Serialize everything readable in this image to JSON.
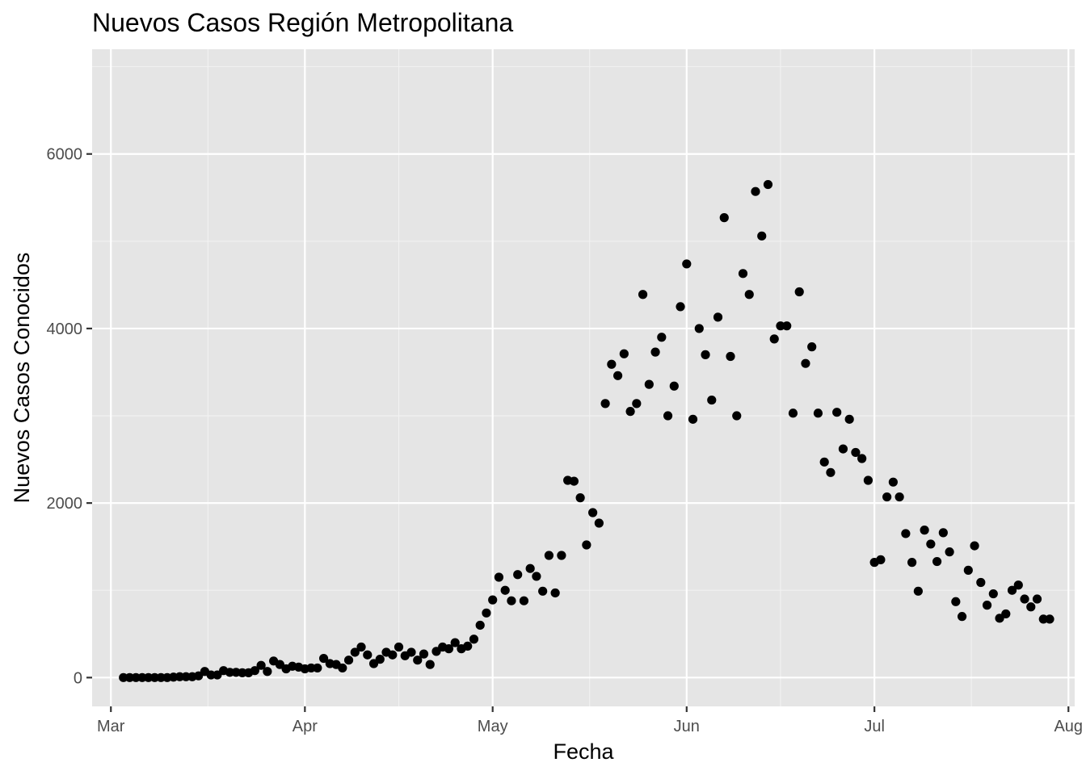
{
  "chart_data": {
    "type": "scatter",
    "title": "Nuevos Casos Región Metropolitana",
    "xlabel": "Fecha",
    "ylabel": "Nuevos Casos Conocidos",
    "xlim": [
      "2020-02-27",
      "2020-08-02"
    ],
    "ylim": [
      -330,
      7200
    ],
    "x_ticks": [
      {
        "date": "2020-03-01",
        "label": "Mar"
      },
      {
        "date": "2020-04-01",
        "label": "Apr"
      },
      {
        "date": "2020-05-01",
        "label": "May"
      },
      {
        "date": "2020-06-01",
        "label": "Jun"
      },
      {
        "date": "2020-07-01",
        "label": "Jul"
      },
      {
        "date": "2020-08-01",
        "label": "Aug"
      }
    ],
    "y_ticks": [
      0,
      2000,
      4000,
      6000
    ],
    "grid": true,
    "background": "#e5e5e5",
    "point_color": "#000000",
    "series": [
      {
        "name": "",
        "points": [
          [
            "2020-03-03",
            0
          ],
          [
            "2020-03-04",
            0
          ],
          [
            "2020-03-05",
            0
          ],
          [
            "2020-03-06",
            0
          ],
          [
            "2020-03-07",
            0
          ],
          [
            "2020-03-08",
            0
          ],
          [
            "2020-03-09",
            0
          ],
          [
            "2020-03-10",
            0
          ],
          [
            "2020-03-11",
            5
          ],
          [
            "2020-03-12",
            10
          ],
          [
            "2020-03-13",
            10
          ],
          [
            "2020-03-14",
            10
          ],
          [
            "2020-03-15",
            20
          ],
          [
            "2020-03-16",
            70
          ],
          [
            "2020-03-17",
            30
          ],
          [
            "2020-03-18",
            30
          ],
          [
            "2020-03-19",
            80
          ],
          [
            "2020-03-20",
            60
          ],
          [
            "2020-03-21",
            60
          ],
          [
            "2020-03-22",
            55
          ],
          [
            "2020-03-23",
            55
          ],
          [
            "2020-03-24",
            80
          ],
          [
            "2020-03-25",
            140
          ],
          [
            "2020-03-26",
            70
          ],
          [
            "2020-03-27",
            190
          ],
          [
            "2020-03-28",
            150
          ],
          [
            "2020-03-29",
            100
          ],
          [
            "2020-03-30",
            130
          ],
          [
            "2020-03-31",
            120
          ],
          [
            "2020-04-01",
            100
          ],
          [
            "2020-04-02",
            110
          ],
          [
            "2020-04-03",
            110
          ],
          [
            "2020-04-04",
            220
          ],
          [
            "2020-04-05",
            160
          ],
          [
            "2020-04-06",
            150
          ],
          [
            "2020-04-07",
            110
          ],
          [
            "2020-04-08",
            200
          ],
          [
            "2020-04-09",
            290
          ],
          [
            "2020-04-10",
            350
          ],
          [
            "2020-04-11",
            260
          ],
          [
            "2020-04-12",
            160
          ],
          [
            "2020-04-13",
            210
          ],
          [
            "2020-04-14",
            290
          ],
          [
            "2020-04-15",
            260
          ],
          [
            "2020-04-16",
            350
          ],
          [
            "2020-04-17",
            250
          ],
          [
            "2020-04-18",
            290
          ],
          [
            "2020-04-19",
            200
          ],
          [
            "2020-04-20",
            270
          ],
          [
            "2020-04-21",
            150
          ],
          [
            "2020-04-22",
            300
          ],
          [
            "2020-04-23",
            350
          ],
          [
            "2020-04-24",
            330
          ],
          [
            "2020-04-25",
            400
          ],
          [
            "2020-04-26",
            330
          ],
          [
            "2020-04-27",
            360
          ],
          [
            "2020-04-28",
            440
          ],
          [
            "2020-04-29",
            600
          ],
          [
            "2020-04-30",
            740
          ],
          [
            "2020-05-01",
            890
          ],
          [
            "2020-05-02",
            1150
          ],
          [
            "2020-05-03",
            1000
          ],
          [
            "2020-05-04",
            880
          ],
          [
            "2020-05-05",
            1180
          ],
          [
            "2020-05-06",
            880
          ],
          [
            "2020-05-07",
            1250
          ],
          [
            "2020-05-08",
            1160
          ],
          [
            "2020-05-09",
            990
          ],
          [
            "2020-05-10",
            1400
          ],
          [
            "2020-05-11",
            970
          ],
          [
            "2020-05-12",
            1400
          ],
          [
            "2020-05-13",
            2260
          ],
          [
            "2020-05-14",
            2250
          ],
          [
            "2020-05-15",
            2060
          ],
          [
            "2020-05-16",
            1520
          ],
          [
            "2020-05-17",
            1890
          ],
          [
            "2020-05-18",
            1770
          ],
          [
            "2020-05-19",
            3140
          ],
          [
            "2020-05-20",
            3590
          ],
          [
            "2020-05-21",
            3460
          ],
          [
            "2020-05-22",
            3710
          ],
          [
            "2020-05-23",
            3050
          ],
          [
            "2020-05-24",
            3140
          ],
          [
            "2020-05-25",
            4390
          ],
          [
            "2020-05-26",
            3360
          ],
          [
            "2020-05-27",
            3730
          ],
          [
            "2020-05-28",
            3900
          ],
          [
            "2020-05-29",
            3000
          ],
          [
            "2020-05-30",
            3340
          ],
          [
            "2020-05-31",
            4250
          ],
          [
            "2020-06-01",
            4740
          ],
          [
            "2020-06-02",
            2960
          ],
          [
            "2020-06-03",
            4000
          ],
          [
            "2020-06-04",
            3700
          ],
          [
            "2020-06-05",
            3180
          ],
          [
            "2020-06-06",
            4130
          ],
          [
            "2020-06-07",
            5270
          ],
          [
            "2020-06-08",
            3680
          ],
          [
            "2020-06-09",
            3000
          ],
          [
            "2020-06-10",
            4630
          ],
          [
            "2020-06-11",
            4390
          ],
          [
            "2020-06-12",
            5570
          ],
          [
            "2020-06-13",
            5060
          ],
          [
            "2020-06-14",
            5650
          ],
          [
            "2020-06-15",
            3880
          ],
          [
            "2020-06-16",
            4030
          ],
          [
            "2020-06-17",
            4030
          ],
          [
            "2020-06-18",
            3030
          ],
          [
            "2020-06-19",
            4420
          ],
          [
            "2020-06-20",
            3600
          ],
          [
            "2020-06-21",
            3790
          ],
          [
            "2020-06-22",
            3030
          ],
          [
            "2020-06-23",
            2470
          ],
          [
            "2020-06-24",
            2350
          ],
          [
            "2020-06-25",
            3040
          ],
          [
            "2020-06-26",
            2620
          ],
          [
            "2020-06-27",
            2960
          ],
          [
            "2020-06-28",
            2580
          ],
          [
            "2020-06-29",
            2510
          ],
          [
            "2020-06-30",
            2260
          ],
          [
            "2020-07-01",
            1320
          ],
          [
            "2020-07-02",
            1350
          ],
          [
            "2020-07-03",
            2070
          ],
          [
            "2020-07-04",
            2240
          ],
          [
            "2020-07-05",
            2070
          ],
          [
            "2020-07-06",
            1650
          ],
          [
            "2020-07-07",
            1320
          ],
          [
            "2020-07-08",
            990
          ],
          [
            "2020-07-09",
            1690
          ],
          [
            "2020-07-10",
            1530
          ],
          [
            "2020-07-11",
            1330
          ],
          [
            "2020-07-12",
            1660
          ],
          [
            "2020-07-13",
            1440
          ],
          [
            "2020-07-14",
            870
          ],
          [
            "2020-07-15",
            700
          ],
          [
            "2020-07-16",
            1230
          ],
          [
            "2020-07-17",
            1510
          ],
          [
            "2020-07-18",
            1090
          ],
          [
            "2020-07-19",
            830
          ],
          [
            "2020-07-20",
            960
          ],
          [
            "2020-07-21",
            680
          ],
          [
            "2020-07-22",
            730
          ],
          [
            "2020-07-23",
            1000
          ],
          [
            "2020-07-24",
            1060
          ],
          [
            "2020-07-25",
            900
          ],
          [
            "2020-07-26",
            810
          ],
          [
            "2020-07-27",
            900
          ],
          [
            "2020-07-28",
            670
          ],
          [
            "2020-07-29",
            670
          ]
        ]
      }
    ]
  }
}
